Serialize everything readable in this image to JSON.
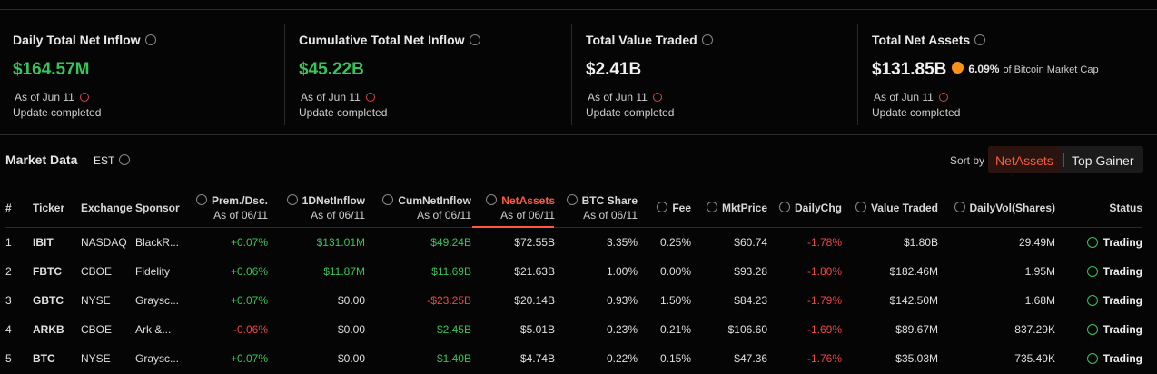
{
  "cards": [
    {
      "title": "Daily Total Net Inflow",
      "value": "$164.57M",
      "as_of": "As of Jun 11",
      "status": "Update completed"
    },
    {
      "title": "Cumulative Total Net Inflow",
      "value": "$45.22B",
      "as_of": "As of Jun 11",
      "status": "Update completed"
    },
    {
      "title": "Total Value Traded",
      "value": "$2.41B",
      "as_of": "As of Jun 11",
      "status": "Update completed"
    },
    {
      "title": "Total Net Assets",
      "value": "$131.85B",
      "share": "6.09%",
      "share_label": "of Bitcoin Market Cap",
      "as_of": "As of Jun 11",
      "status": "Update completed"
    }
  ],
  "market": {
    "title": "Market Data",
    "timezone": "EST",
    "sort_label": "Sort by",
    "sort_options": [
      "NetAssets",
      "Top Gainer"
    ]
  },
  "table": {
    "headers": [
      {
        "label": "#"
      },
      {
        "label": "Ticker"
      },
      {
        "label": "Exchange"
      },
      {
        "label": "Sponsor"
      },
      {
        "label": "Prem./Dsc.",
        "sub": "As of 06/11"
      },
      {
        "label": "1DNetInflow",
        "sub": "As of 06/11"
      },
      {
        "label": "CumNetInflow",
        "sub": "As of 06/11"
      },
      {
        "label": "NetAssets",
        "sub": "As of 06/11"
      },
      {
        "label": "BTC Share",
        "sub": "As of 06/11"
      },
      {
        "label": "Fee"
      },
      {
        "label": "MktPrice"
      },
      {
        "label": "DailyChg"
      },
      {
        "label": "Value Traded"
      },
      {
        "label": "DailyVol(Shares)"
      },
      {
        "label": "Status"
      }
    ],
    "rows": [
      [
        "1",
        "IBIT",
        "NASDAQ",
        "BlackR...",
        "+0.07%",
        "$131.01M",
        "$49.24B",
        "$72.55B",
        "3.35%",
        "0.25%",
        "$60.74",
        "-1.78%",
        "$1.80B",
        "29.49M",
        "Trading"
      ],
      [
        "2",
        "FBTC",
        "CBOE",
        "Fidelity",
        "+0.06%",
        "$11.87M",
        "$11.69B",
        "$21.63B",
        "1.00%",
        "0.00%",
        "$93.28",
        "-1.80%",
        "$182.46M",
        "1.95M",
        "Trading"
      ],
      [
        "3",
        "GBTC",
        "NYSE",
        "Graysc...",
        "+0.07%",
        "$0.00",
        "-$23.25B",
        "$20.14B",
        "0.93%",
        "1.50%",
        "$84.23",
        "-1.79%",
        "$142.50M",
        "1.68M",
        "Trading"
      ],
      [
        "4",
        "ARKB",
        "CBOE",
        "Ark &...",
        "-0.06%",
        "$0.00",
        "$2.45B",
        "$5.01B",
        "0.23%",
        "0.21%",
        "$106.60",
        "-1.69%",
        "$89.67M",
        "837.29K",
        "Trading"
      ],
      [
        "5",
        "BTC",
        "NYSE",
        "Graysc...",
        "+0.07%",
        "$0.00",
        "$1.40B",
        "$4.74B",
        "0.22%",
        "0.15%",
        "$47.36",
        "-1.76%",
        "$35.03M",
        "735.49K",
        "Trading"
      ]
    ]
  }
}
